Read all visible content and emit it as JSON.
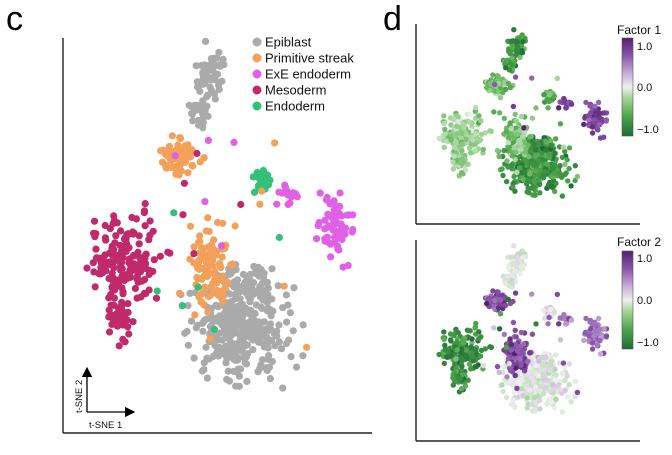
{
  "panel_c": {
    "letter": "c"
  },
  "panel_d": {
    "letter": "d"
  },
  "chart_data": [
    {
      "type": "scatter",
      "panel": "c",
      "xlabel": "t-SNE 1",
      "ylabel": "t-SNE 2",
      "legend_position": "top-right",
      "grid": false,
      "series": [
        {
          "name": "Epiblast",
          "color": "#aaaaaa"
        },
        {
          "name": "Primitive streak",
          "color": "#f2a05a"
        },
        {
          "name": "ExE endoderm",
          "color": "#e060e6"
        },
        {
          "name": "Mesoderm",
          "color": "#c12a6a"
        },
        {
          "name": "Endoderm",
          "color": "#33c07a"
        }
      ]
    },
    {
      "type": "scatter",
      "panel": "d-top",
      "colorbar": {
        "title": "Factor 1",
        "ticks": [
          "1.0",
          "0.0",
          "−1.0"
        ],
        "range": [
          -1,
          1
        ]
      },
      "colormap": [
        "#1f6b35",
        "#4da64a",
        "#9fd395",
        "#efefef",
        "#c5a7d4",
        "#8a55ac",
        "#54206e"
      ]
    },
    {
      "type": "scatter",
      "panel": "d-bottom",
      "colorbar": {
        "title": "Factor 2",
        "ticks": [
          "1.0",
          "0.0",
          "−1.0"
        ],
        "range": [
          -1,
          1
        ]
      },
      "colormap": [
        "#1f6b35",
        "#4da64a",
        "#9fd395",
        "#efefef",
        "#c5a7d4",
        "#8a55ac",
        "#54206e"
      ]
    }
  ]
}
